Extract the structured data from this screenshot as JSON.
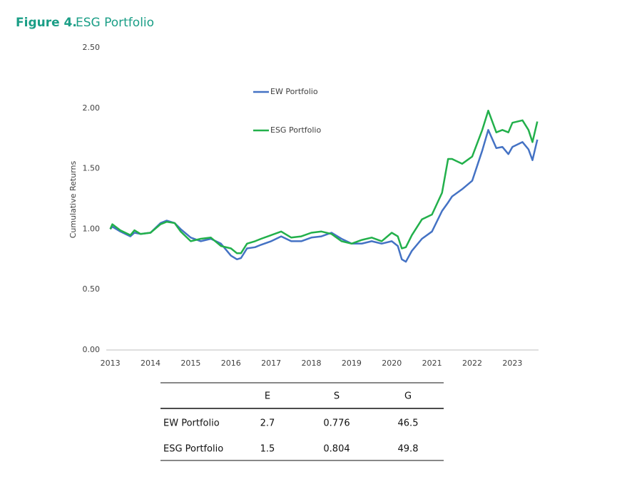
{
  "figure": {
    "label": "Figure 4.",
    "title": "ESG Portfolio"
  },
  "chart_data": {
    "type": "line",
    "ylabel": "Cumulative Returns",
    "x": [
      2013,
      2013.05,
      2013.25,
      2013.5,
      2013.6,
      2013.75,
      2014,
      2014.25,
      2014.4,
      2014.6,
      2014.75,
      2015,
      2015.25,
      2015.5,
      2015.75,
      2016,
      2016.15,
      2016.25,
      2016.4,
      2016.6,
      2016.75,
      2017,
      2017.25,
      2017.5,
      2017.75,
      2018,
      2018.25,
      2018.5,
      2018.75,
      2019,
      2019.25,
      2019.5,
      2019.75,
      2020,
      2020.15,
      2020.25,
      2020.35,
      2020.5,
      2020.75,
      2021,
      2021.25,
      2021.4,
      2021.5,
      2021.75,
      2022,
      2022.25,
      2022.4,
      2022.6,
      2022.75,
      2022.9,
      2023,
      2023.25,
      2023.4,
      2023.5,
      2023.62
    ],
    "series": [
      {
        "name": "EW Portfolio",
        "color": "#4472c4",
        "values": [
          1.0,
          1.02,
          0.98,
          0.94,
          0.97,
          0.96,
          0.97,
          1.05,
          1.07,
          1.05,
          1.0,
          0.93,
          0.9,
          0.92,
          0.88,
          0.78,
          0.75,
          0.76,
          0.84,
          0.85,
          0.87,
          0.9,
          0.94,
          0.9,
          0.9,
          0.93,
          0.94,
          0.97,
          0.92,
          0.88,
          0.88,
          0.9,
          0.88,
          0.9,
          0.86,
          0.75,
          0.73,
          0.82,
          0.92,
          0.98,
          1.15,
          1.22,
          1.27,
          1.33,
          1.4,
          1.65,
          1.82,
          1.67,
          1.68,
          1.62,
          1.68,
          1.72,
          1.66,
          1.57,
          1.74
        ]
      },
      {
        "name": "ESG Portfolio",
        "color": "#22b04b",
        "values": [
          1.0,
          1.04,
          0.99,
          0.95,
          0.99,
          0.96,
          0.97,
          1.04,
          1.06,
          1.05,
          0.98,
          0.9,
          0.92,
          0.93,
          0.86,
          0.84,
          0.8,
          0.8,
          0.88,
          0.9,
          0.92,
          0.95,
          0.98,
          0.93,
          0.94,
          0.97,
          0.98,
          0.96,
          0.9,
          0.88,
          0.91,
          0.93,
          0.9,
          0.97,
          0.94,
          0.84,
          0.85,
          0.95,
          1.08,
          1.12,
          1.3,
          1.58,
          1.58,
          1.54,
          1.6,
          1.82,
          1.98,
          1.8,
          1.82,
          1.8,
          1.88,
          1.9,
          1.82,
          1.72,
          1.89
        ]
      }
    ],
    "xlim": [
      2012.9,
      2023.65
    ],
    "xticks": [
      2013,
      2014,
      2015,
      2016,
      2017,
      2018,
      2019,
      2020,
      2021,
      2022,
      2023
    ],
    "ylim": [
      0,
      2.5
    ],
    "yticks": [
      {
        "value": 0,
        "label": "0.00"
      },
      {
        "value": 0.5,
        "label": "0.50"
      },
      {
        "value": 1,
        "label": "1.00"
      },
      {
        "value": 1.5,
        "label": "1.50"
      },
      {
        "value": 2,
        "label": "2.00"
      },
      {
        "value": 2.5,
        "label": "2.50"
      }
    ],
    "grid": false,
    "legend": "upper center"
  },
  "table": {
    "columns": [
      "E",
      "S",
      "G"
    ],
    "rows": [
      {
        "name": "EW Portfolio",
        "values": [
          2.7,
          0.776,
          46.5
        ]
      },
      {
        "name": "ESG Portfolio",
        "values": [
          1.5,
          0.804,
          49.8
        ]
      }
    ]
  }
}
